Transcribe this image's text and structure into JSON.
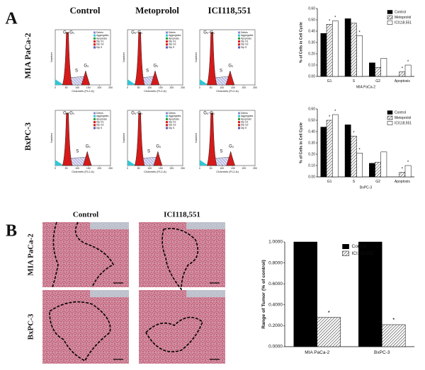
{
  "panel_a": {
    "label": "A",
    "columns": [
      "Control",
      "Metoprolol",
      "ICI118,551"
    ],
    "rows": [
      "MIA PaCa-2",
      "BxPC-3"
    ],
    "histogram": {
      "x_label": "Channels (FL2-A)",
      "y_label": "Number",
      "xticks": [
        0,
        50,
        100,
        150,
        200,
        250
      ],
      "legend": [
        "Debris",
        "Aggregates",
        "Apoptosis",
        "Dip G1",
        "Dip G2",
        "Dip S"
      ],
      "peaks": [
        "G₀-G₁",
        "S",
        "G₂"
      ]
    }
  },
  "panel_b": {
    "label": "B",
    "columns": [
      "Control",
      "ICI118,551"
    ],
    "rows": [
      "MIA PaCa-2",
      "BxPC-3"
    ]
  },
  "chart_data": [
    {
      "type": "bar",
      "x_label": "MIA PaCa-2",
      "y_label": "% of Cells in Cell Cycle",
      "legend": "upper right",
      "categories": [
        "G1",
        "S",
        "G2",
        "Apoptosis"
      ],
      "series": [
        {
          "name": "Control",
          "color": "#000000",
          "values": [
            0.38,
            0.51,
            0.12,
            0.0
          ],
          "markers": [
            null,
            null,
            null,
            null
          ]
        },
        {
          "name": "Metoprolol",
          "color": "#888888",
          "hatched": true,
          "values": [
            0.46,
            0.47,
            0.08,
            0.04
          ],
          "markers": [
            "*",
            null,
            null,
            "*"
          ]
        },
        {
          "name": "ICI118,551",
          "color": "#ffffff",
          "values": [
            0.49,
            0.36,
            0.16,
            0.1
          ],
          "markers": [
            "*",
            "*",
            null,
            "*"
          ]
        }
      ],
      "ylim": [
        0,
        0.6
      ],
      "yticks": [
        {
          "value": 0,
          "label": "0.00"
        },
        {
          "value": 0.1,
          "label": "0.10"
        },
        {
          "value": 0.2,
          "label": "0.20"
        },
        {
          "value": 0.3,
          "label": "0.30"
        },
        {
          "value": 0.4,
          "label": "0.40"
        },
        {
          "value": 0.5,
          "label": "0.50"
        },
        {
          "value": 0.6,
          "label": "0.60"
        }
      ]
    },
    {
      "type": "bar",
      "x_label": "BxPC-3",
      "y_label": "% of Cells in Cell Cycle",
      "legend": "upper right",
      "categories": [
        "G1",
        "S",
        "G2",
        "Apoptosis"
      ],
      "series": [
        {
          "name": "Control",
          "color": "#000000",
          "values": [
            0.44,
            0.46,
            0.12,
            0.0
          ],
          "markers": [
            null,
            null,
            null,
            null
          ]
        },
        {
          "name": "Metoprolol",
          "color": "#888888",
          "hatched": true,
          "values": [
            0.5,
            0.36,
            0.13,
            0.04
          ],
          "markers": [
            "*",
            "*",
            null,
            "*"
          ]
        },
        {
          "name": "ICI118,551",
          "color": "#ffffff",
          "values": [
            0.55,
            0.21,
            0.22,
            0.1
          ],
          "markers": [
            "*",
            "*",
            null,
            "*"
          ]
        }
      ],
      "ylim": [
        0,
        0.6
      ],
      "yticks": [
        {
          "value": 0,
          "label": "0.00"
        },
        {
          "value": 0.1,
          "label": "0.10"
        },
        {
          "value": 0.2,
          "label": "0.20"
        },
        {
          "value": 0.3,
          "label": "0.30"
        },
        {
          "value": 0.4,
          "label": "0.40"
        },
        {
          "value": 0.5,
          "label": "0.50"
        },
        {
          "value": 0.6,
          "label": "0.60"
        }
      ]
    },
    {
      "type": "bar",
      "y_label": "Range of Tumor (% of control)",
      "legend": "upper center",
      "categories": [
        "MIA PaCa-2",
        "BxPC-3"
      ],
      "series": [
        {
          "name": "Control",
          "color": "#000000",
          "values": [
            1.0,
            1.0
          ],
          "markers": [
            null,
            null
          ]
        },
        {
          "name": "ICI118,551",
          "color": "#ffffff",
          "hatched": true,
          "values": [
            0.28,
            0.21
          ],
          "markers": [
            "*",
            "*"
          ]
        }
      ],
      "ylim": [
        0,
        1.0
      ],
      "yticks": [
        {
          "value": 0,
          "label": "0.0000"
        },
        {
          "value": 0.2,
          "label": "0.2000"
        },
        {
          "value": 0.4,
          "label": "0.4000"
        },
        {
          "value": 0.6,
          "label": "0.6000"
        },
        {
          "value": 0.8,
          "label": "0.8000"
        },
        {
          "value": 1.0,
          "label": "1.0000"
        }
      ]
    }
  ]
}
